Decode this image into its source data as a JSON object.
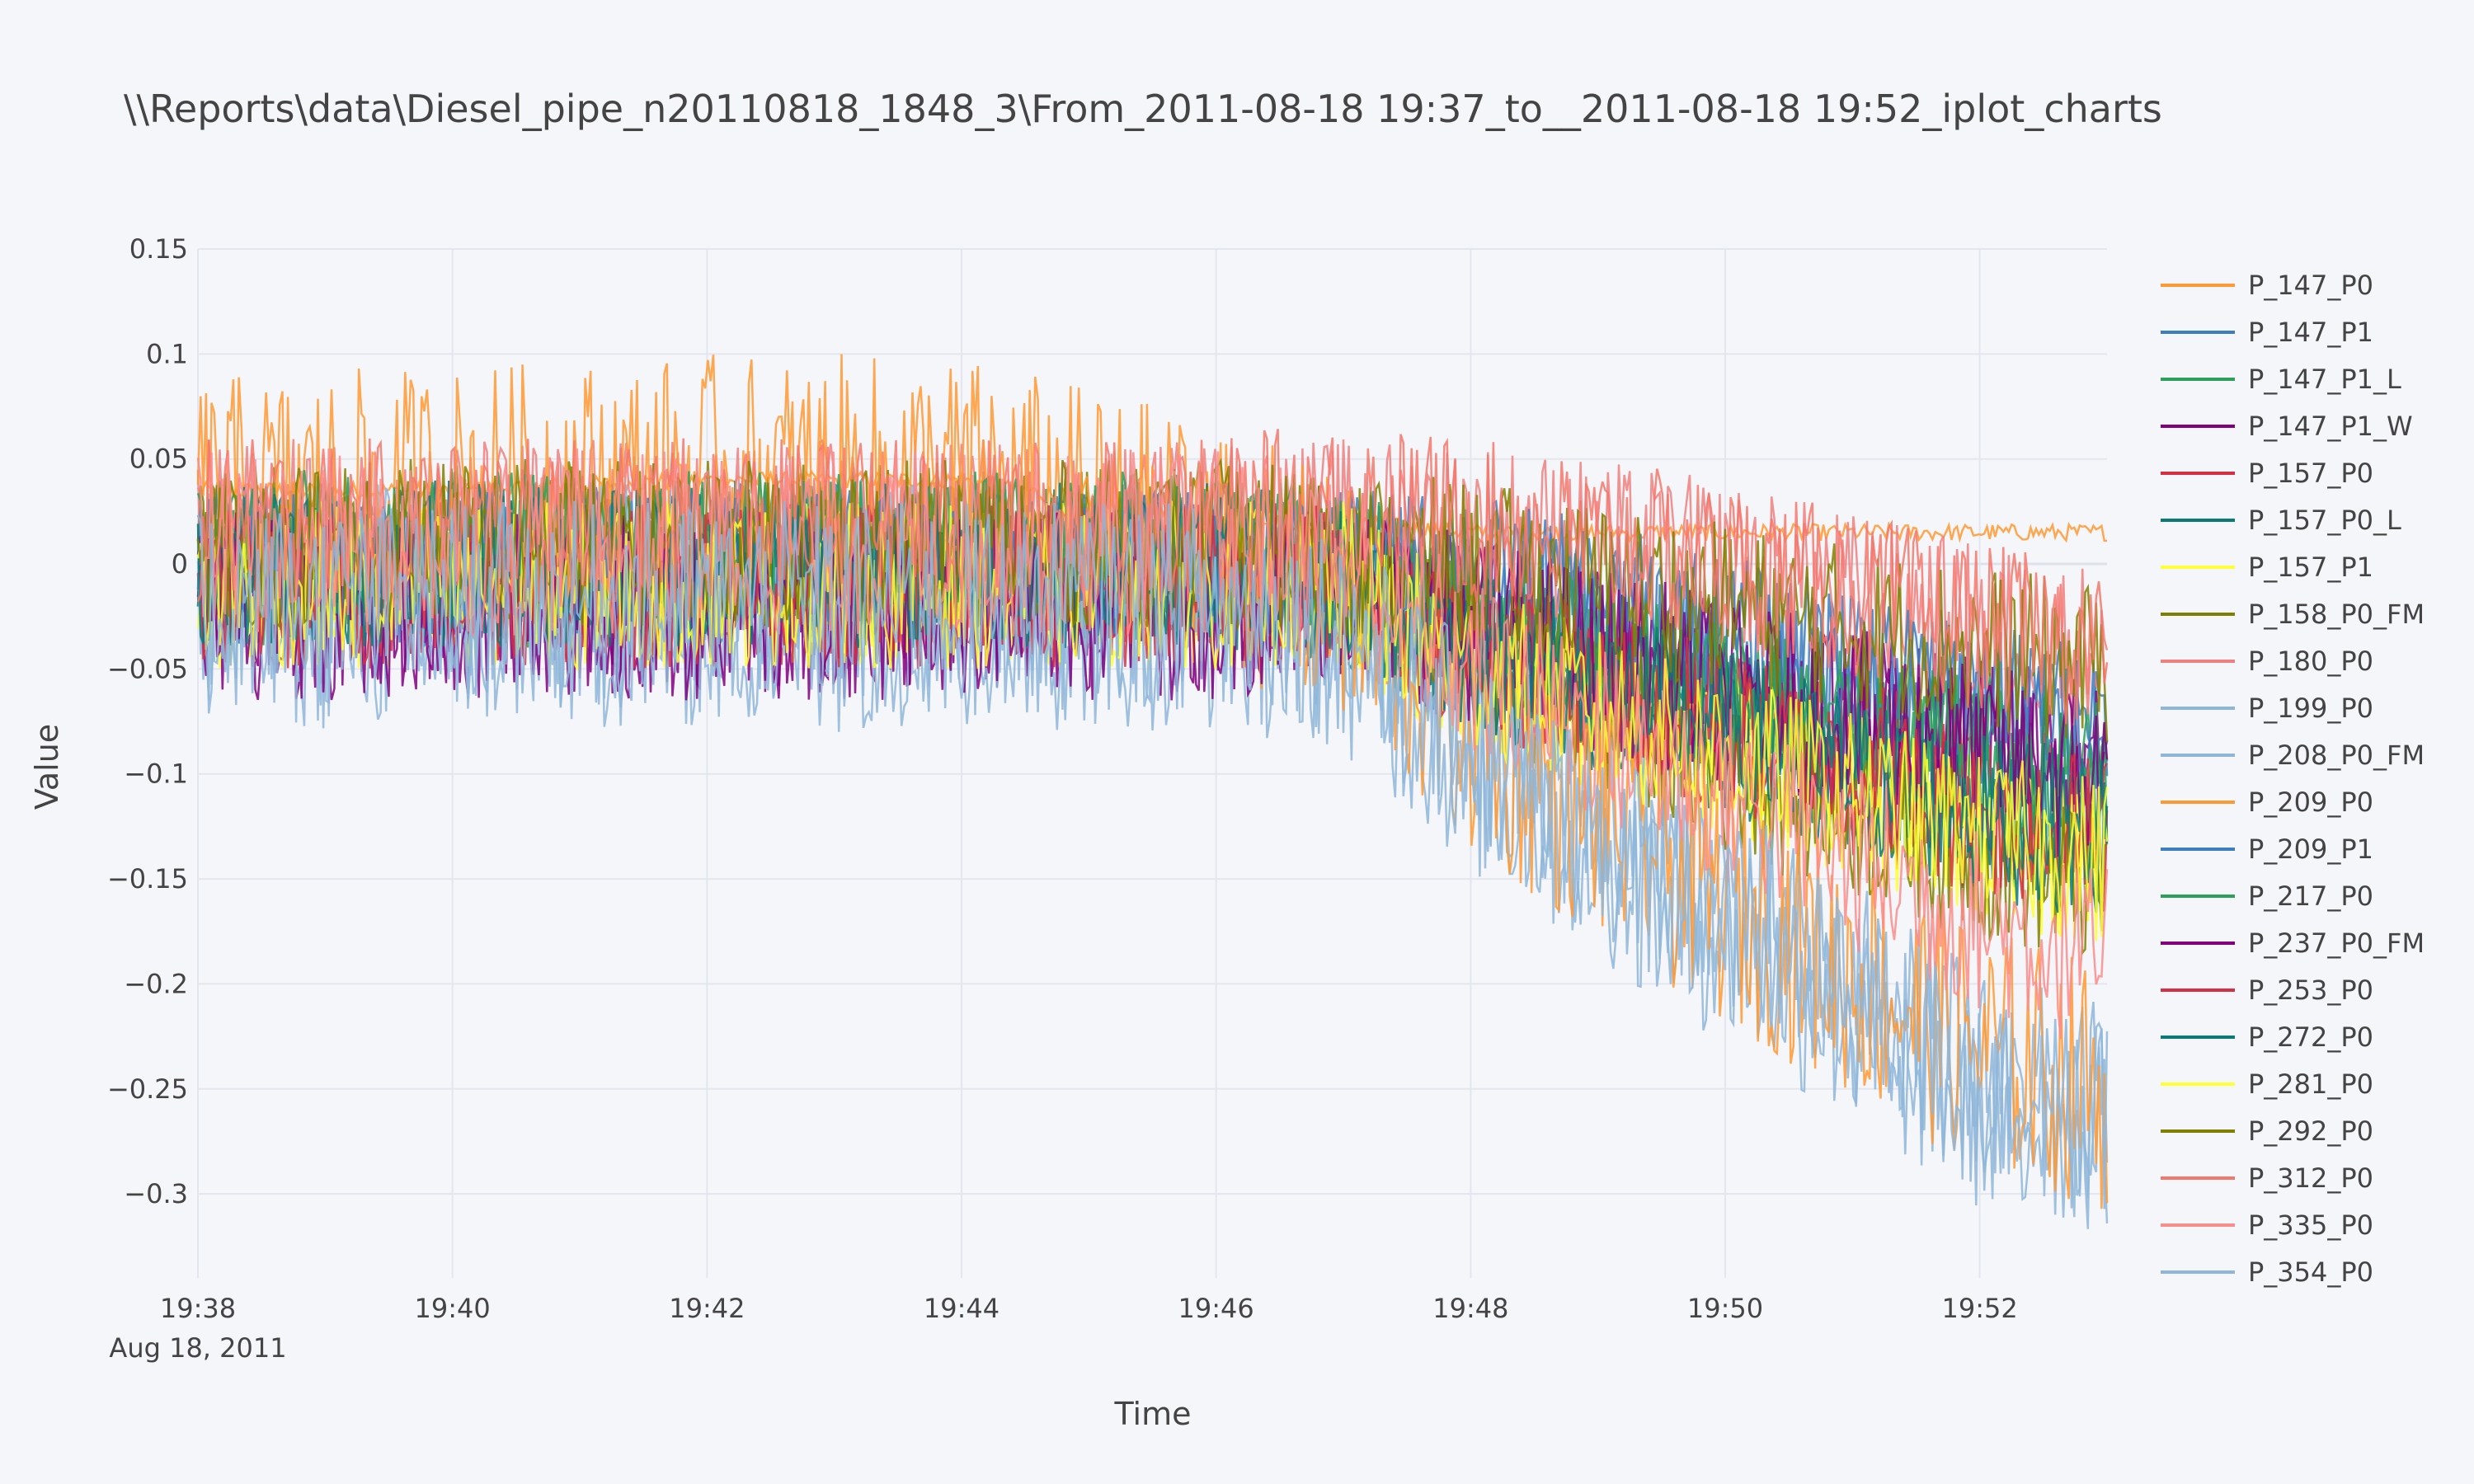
{
  "chart_data": {
    "type": "line",
    "title": "\\\\Reports\\data\\Diesel_pipe_n20110818_1848_3\\From_2011-08-18 19:37_to__2011-08-18 19:52_iplot_charts",
    "xlabel": "Time",
    "ylabel": "Value",
    "x_range": [
      "2011-08-18 19:38",
      "2011-08-18 19:53"
    ],
    "ylim": [
      -0.34,
      0.15
    ],
    "grid": true,
    "legend_position": "right",
    "x_ticks": [
      {
        "x": "2011-08-18 19:38",
        "label": "19:38",
        "sublabel": "Aug 18, 2011"
      },
      {
        "x": "2011-08-18 19:40",
        "label": "19:40",
        "sublabel": ""
      },
      {
        "x": "2011-08-18 19:42",
        "label": "19:42",
        "sublabel": ""
      },
      {
        "x": "2011-08-18 19:44",
        "label": "19:44",
        "sublabel": ""
      },
      {
        "x": "2011-08-18 19:46",
        "label": "19:46",
        "sublabel": ""
      },
      {
        "x": "2011-08-18 19:48",
        "label": "19:48",
        "sublabel": ""
      },
      {
        "x": "2011-08-18 19:50",
        "label": "19:50",
        "sublabel": ""
      },
      {
        "x": "2011-08-18 19:52",
        "label": "19:52",
        "sublabel": ""
      }
    ],
    "y_ticks": [
      {
        "y": 0.15,
        "label": "0.15"
      },
      {
        "y": 0.1,
        "label": "0.1"
      },
      {
        "y": 0.05,
        "label": "0.05"
      },
      {
        "y": 0,
        "label": "0"
      },
      {
        "y": -0.05,
        "label": "−0.05"
      },
      {
        "y": -0.1,
        "label": "−0.1"
      },
      {
        "y": -0.15,
        "label": "−0.15"
      },
      {
        "y": -0.2,
        "label": "−0.2"
      },
      {
        "y": -0.25,
        "label": "−0.25"
      },
      {
        "y": -0.3,
        "label": "−0.3"
      }
    ],
    "series": [
      {
        "name": "P_147_P0",
        "color": "#ff9933",
        "x": [
          "2011-08-18 19:38",
          "2011-08-18 19:40",
          "2011-08-18 19:42",
          "2011-08-18 19:44",
          "2011-08-18 19:46",
          "2011-08-18 19:47",
          "2011-08-18 19:48",
          "2011-08-18 19:50",
          "2011-08-18 19:52",
          "2011-08-18 19:53"
        ],
        "mean": [
          0.035,
          0.035,
          0.04,
          0.04,
          0.02,
          0.02,
          0.015,
          0.015,
          0.015,
          0.015
        ],
        "noise": 0.004
      },
      {
        "name": "P_147_P1",
        "color": "#3d7ebf",
        "x": [
          "2011-08-18 19:38",
          "2011-08-18 19:40",
          "2011-08-18 19:42",
          "2011-08-18 19:44",
          "2011-08-18 19:46",
          "2011-08-18 19:47",
          "2011-08-18 19:48",
          "2011-08-18 19:50",
          "2011-08-18 19:52",
          "2011-08-18 19:53"
        ],
        "mean": [
          0,
          0,
          0,
          0,
          0,
          0,
          -0.01,
          -0.04,
          -0.07,
          -0.085
        ],
        "noise": 0.04
      },
      {
        "name": "P_147_P1_L",
        "color": "#2ca05a",
        "x": [
          "2011-08-18 19:38",
          "2011-08-18 19:40",
          "2011-08-18 19:42",
          "2011-08-18 19:44",
          "2011-08-18 19:46",
          "2011-08-18 19:47",
          "2011-08-18 19:48",
          "2011-08-18 19:50",
          "2011-08-18 19:52",
          "2011-08-18 19:53"
        ],
        "mean": [
          0,
          0,
          0,
          0,
          0,
          -0.01,
          -0.03,
          -0.06,
          -0.09,
          -0.105
        ],
        "noise": 0.04
      },
      {
        "name": "P_147_P1_W",
        "color": "#800080",
        "x": [
          "2011-08-18 19:38",
          "2011-08-18 19:40",
          "2011-08-18 19:42",
          "2011-08-18 19:44",
          "2011-08-18 19:46",
          "2011-08-18 19:47",
          "2011-08-18 19:48",
          "2011-08-18 19:50",
          "2011-08-18 19:52",
          "2011-08-18 19:53"
        ],
        "mean": [
          -0.02,
          -0.02,
          -0.02,
          -0.02,
          -0.02,
          -0.01,
          -0.03,
          -0.06,
          -0.09,
          -0.1
        ],
        "noise": 0.045
      },
      {
        "name": "P_157_P0",
        "color": "#d62f44",
        "x": [
          "2011-08-18 19:38",
          "2011-08-18 19:40",
          "2011-08-18 19:42",
          "2011-08-18 19:44",
          "2011-08-18 19:46",
          "2011-08-18 19:47",
          "2011-08-18 19:48",
          "2011-08-18 19:50",
          "2011-08-18 19:52",
          "2011-08-18 19:53"
        ],
        "mean": [
          -0.01,
          -0.01,
          -0.01,
          -0.01,
          -0.01,
          -0.01,
          -0.04,
          -0.08,
          -0.11,
          -0.13
        ],
        "noise": 0.04
      },
      {
        "name": "P_157_P0_L",
        "color": "#0a7a78",
        "x": [
          "2011-08-18 19:38",
          "2011-08-18 19:40",
          "2011-08-18 19:42",
          "2011-08-18 19:44",
          "2011-08-18 19:46",
          "2011-08-18 19:47",
          "2011-08-18 19:48",
          "2011-08-18 19:50",
          "2011-08-18 19:52",
          "2011-08-18 19:53"
        ],
        "mean": [
          0,
          0,
          0,
          0,
          0,
          -0.01,
          -0.04,
          -0.08,
          -0.12,
          -0.135
        ],
        "noise": 0.04
      },
      {
        "name": "P_157_P1",
        "color": "#ffff33",
        "x": [
          "2011-08-18 19:38",
          "2011-08-18 19:40",
          "2011-08-18 19:42",
          "2011-08-18 19:44",
          "2011-08-18 19:46",
          "2011-08-18 19:47",
          "2011-08-18 19:48",
          "2011-08-18 19:50",
          "2011-08-18 19:52",
          "2011-08-18 19:53"
        ],
        "mean": [
          -0.01,
          -0.01,
          -0.01,
          -0.01,
          -0.01,
          -0.01,
          -0.05,
          -0.09,
          -0.13,
          -0.145
        ],
        "noise": 0.04
      },
      {
        "name": "P_158_P0_FM",
        "color": "#808000",
        "x": [
          "2011-08-18 19:38",
          "2011-08-18 19:40",
          "2011-08-18 19:42",
          "2011-08-18 19:44",
          "2011-08-18 19:46",
          "2011-08-18 19:47",
          "2011-08-18 19:48",
          "2011-08-18 19:50",
          "2011-08-18 19:52",
          "2011-08-18 19:53"
        ],
        "mean": [
          0.01,
          0.01,
          0.01,
          0.01,
          0.01,
          0,
          -0.04,
          -0.1,
          -0.14,
          -0.155
        ],
        "noise": 0.04
      },
      {
        "name": "P_180_P0",
        "color": "#f08080",
        "x": [
          "2011-08-18 19:38",
          "2011-08-18 19:40",
          "2011-08-18 19:42",
          "2011-08-18 19:44",
          "2011-08-18 19:46",
          "2011-08-18 19:47",
          "2011-08-18 19:48",
          "2011-08-18 19:50",
          "2011-08-18 19:52",
          "2011-08-18 19:53"
        ],
        "mean": [
          0.02,
          0.02,
          0.02,
          0.02,
          0.02,
          0.02,
          0.02,
          0.0,
          -0.03,
          -0.04
        ],
        "noise": 0.04
      },
      {
        "name": "P_199_P0",
        "color": "#8eb6d9",
        "x": [
          "2011-08-18 19:38",
          "2011-08-18 19:40",
          "2011-08-18 19:42",
          "2011-08-18 19:44",
          "2011-08-18 19:46",
          "2011-08-18 19:47",
          "2011-08-18 19:48",
          "2011-08-18 19:50",
          "2011-08-18 19:52",
          "2011-08-18 19:53"
        ],
        "mean": [
          -0.03,
          -0.03,
          -0.03,
          -0.03,
          -0.03,
          -0.04,
          -0.1,
          -0.18,
          -0.26,
          -0.27
        ],
        "noise": 0.05
      },
      {
        "name": "P_208_P0_FM",
        "color": "#8eb6d9",
        "x": [
          "2011-08-18 19:38",
          "2011-08-18 19:40",
          "2011-08-18 19:42",
          "2011-08-18 19:44",
          "2011-08-18 19:46",
          "2011-08-18 19:47",
          "2011-08-18 19:48",
          "2011-08-18 19:50",
          "2011-08-18 19:52",
          "2011-08-18 19:53"
        ],
        "mean": [
          -0.01,
          -0.01,
          -0.01,
          -0.01,
          -0.01,
          -0.02,
          -0.08,
          -0.16,
          -0.24,
          -0.26
        ],
        "noise": 0.05
      },
      {
        "name": "P_209_P0",
        "color": "#ff9933",
        "x": [
          "2011-08-18 19:38",
          "2011-08-18 19:40",
          "2011-08-18 19:42",
          "2011-08-18 19:44",
          "2011-08-18 19:46",
          "2011-08-18 19:47",
          "2011-08-18 19:48",
          "2011-08-18 19:50",
          "2011-08-18 19:52",
          "2011-08-18 19:53"
        ],
        "mean": [
          0.03,
          0.035,
          0.04,
          0.04,
          0.01,
          -0.02,
          -0.08,
          -0.16,
          -0.23,
          -0.25
        ],
        "noise": 0.06
      },
      {
        "name": "P_209_P1",
        "color": "#3d7ebf",
        "x": [
          "2011-08-18 19:38",
          "2011-08-18 19:40",
          "2011-08-18 19:42",
          "2011-08-18 19:44",
          "2011-08-18 19:46",
          "2011-08-18 19:47",
          "2011-08-18 19:48",
          "2011-08-18 19:50",
          "2011-08-18 19:52",
          "2011-08-18 19:53"
        ],
        "mean": [
          0,
          0,
          0,
          0,
          0,
          0,
          0,
          -0.03,
          -0.06,
          -0.075
        ],
        "noise": 0.035
      },
      {
        "name": "P_217_P0",
        "color": "#2ca05a",
        "x": [
          "2011-08-18 19:38",
          "2011-08-18 19:40",
          "2011-08-18 19:42",
          "2011-08-18 19:44",
          "2011-08-18 19:46",
          "2011-08-18 19:47",
          "2011-08-18 19:48",
          "2011-08-18 19:50",
          "2011-08-18 19:52",
          "2011-08-18 19:53"
        ],
        "mean": [
          0.01,
          0.01,
          0.01,
          0.01,
          0.01,
          0,
          -0.02,
          -0.06,
          -0.09,
          -0.1
        ],
        "noise": 0.035
      },
      {
        "name": "P_237_P0_FM",
        "color": "#800080",
        "x": [
          "2011-08-18 19:38",
          "2011-08-18 19:40",
          "2011-08-18 19:42",
          "2011-08-18 19:44",
          "2011-08-18 19:46",
          "2011-08-18 19:47",
          "2011-08-18 19:48",
          "2011-08-18 19:50",
          "2011-08-18 19:52",
          "2011-08-18 19:53"
        ],
        "mean": [
          -0.02,
          -0.02,
          -0.02,
          -0.02,
          -0.02,
          -0.01,
          -0.03,
          -0.06,
          -0.09,
          -0.105
        ],
        "noise": 0.045
      },
      {
        "name": "P_253_P0",
        "color": "#d62f44",
        "x": [
          "2011-08-18 19:38",
          "2011-08-18 19:40",
          "2011-08-18 19:42",
          "2011-08-18 19:44",
          "2011-08-18 19:46",
          "2011-08-18 19:47",
          "2011-08-18 19:48",
          "2011-08-18 19:50",
          "2011-08-18 19:52",
          "2011-08-18 19:53"
        ],
        "mean": [
          -0.01,
          -0.01,
          -0.01,
          -0.01,
          -0.01,
          -0.01,
          -0.04,
          -0.08,
          -0.12,
          -0.13
        ],
        "noise": 0.04
      },
      {
        "name": "P_272_P0",
        "color": "#0a7a78",
        "x": [
          "2011-08-18 19:38",
          "2011-08-18 19:40",
          "2011-08-18 19:42",
          "2011-08-18 19:44",
          "2011-08-18 19:46",
          "2011-08-18 19:47",
          "2011-08-18 19:48",
          "2011-08-18 19:50",
          "2011-08-18 19:52",
          "2011-08-18 19:53"
        ],
        "mean": [
          0,
          0,
          0,
          0,
          0,
          -0.01,
          -0.04,
          -0.08,
          -0.12,
          -0.13
        ],
        "noise": 0.04
      },
      {
        "name": "P_281_P0",
        "color": "#ffff33",
        "x": [
          "2011-08-18 19:38",
          "2011-08-18 19:40",
          "2011-08-18 19:42",
          "2011-08-18 19:44",
          "2011-08-18 19:46",
          "2011-08-18 19:47",
          "2011-08-18 19:48",
          "2011-08-18 19:50",
          "2011-08-18 19:52",
          "2011-08-18 19:53"
        ],
        "mean": [
          -0.01,
          -0.01,
          -0.01,
          -0.01,
          -0.01,
          -0.01,
          -0.05,
          -0.09,
          -0.13,
          -0.14
        ],
        "noise": 0.04
      },
      {
        "name": "P_292_P0",
        "color": "#808000",
        "x": [
          "2011-08-18 19:38",
          "2011-08-18 19:40",
          "2011-08-18 19:42",
          "2011-08-18 19:44",
          "2011-08-18 19:46",
          "2011-08-18 19:47",
          "2011-08-18 19:48",
          "2011-08-18 19:50",
          "2011-08-18 19:52",
          "2011-08-18 19:53"
        ],
        "mean": [
          0.01,
          0.01,
          0.01,
          0.01,
          0.01,
          0.005,
          0.0,
          -0.02,
          -0.04,
          -0.05
        ],
        "noise": 0.04
      },
      {
        "name": "P_312_P0",
        "color": "#f4776c",
        "x": [
          "2011-08-18 19:38",
          "2011-08-18 19:40",
          "2011-08-18 19:42",
          "2011-08-18 19:44",
          "2011-08-18 19:46",
          "2011-08-18 19:47",
          "2011-08-18 19:48",
          "2011-08-18 19:50",
          "2011-08-18 19:52",
          "2011-08-18 19:53"
        ],
        "mean": [
          0.02,
          0.02,
          0.02,
          0.02,
          0.02,
          0.03,
          0.02,
          0.0,
          -0.03,
          -0.04
        ],
        "noise": 0.04
      },
      {
        "name": "P_335_P0",
        "color": "#fa8c8c",
        "x": [
          "2011-08-18 19:38",
          "2011-08-18 19:40",
          "2011-08-18 19:42",
          "2011-08-18 19:44",
          "2011-08-18 19:46",
          "2011-08-18 19:47",
          "2011-08-18 19:48",
          "2011-08-18 19:50",
          "2011-08-18 19:52",
          "2011-08-18 19:53"
        ],
        "mean": [
          0.01,
          0.01,
          0.01,
          0.01,
          0.01,
          0.0,
          -0.05,
          -0.11,
          -0.17,
          -0.19
        ],
        "noise": 0.045
      },
      {
        "name": "P_354_P0",
        "color": "#8eb6d9",
        "x": [
          "2011-08-18 19:38",
          "2011-08-18 19:40",
          "2011-08-18 19:42",
          "2011-08-18 19:44",
          "2011-08-18 19:46",
          "2011-08-18 19:47",
          "2011-08-18 19:48",
          "2011-08-18 19:50",
          "2011-08-18 19:52",
          "2011-08-18 19:53"
        ],
        "mean": [
          -0.02,
          -0.02,
          -0.02,
          -0.02,
          -0.02,
          -0.03,
          -0.09,
          -0.17,
          -0.25,
          -0.27
        ],
        "noise": 0.05
      }
    ]
  }
}
